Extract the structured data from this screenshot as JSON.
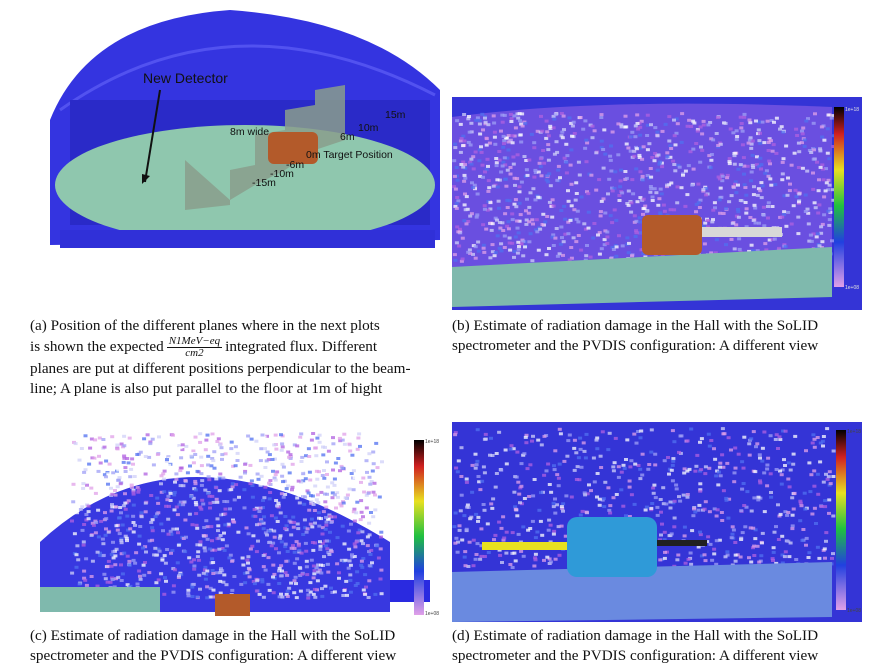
{
  "panels": {
    "a": {
      "labels": {
        "new_detector": "New Detector",
        "width": "8m wide",
        "d15_top": "15m",
        "d10_top": "10m",
        "d6_top": "6m",
        "target": "0m Target Position",
        "d6_bot": "-6m",
        "d10_bot": "-10m",
        "d15_bot": "-15m"
      }
    },
    "b": {
      "scale_top": "1e+18",
      "scale_bottom": "1e+08"
    },
    "c": {
      "scale_top": "1e+18",
      "scale_bottom": "1e+08"
    },
    "d": {
      "scale_top": "1e+18",
      "scale_bottom": "1e+08"
    }
  },
  "captions": {
    "a": {
      "line1": "(a) Position of the different planes where in the next plots",
      "line2_pre": "is shown the expected",
      "frac_num": "N1MeV−eq",
      "frac_den": "cm2",
      "line2_post": "integrated flux.  Different",
      "line3": "planes are put at different positions perpendicular to the beam-",
      "line4": "line; A plane is also put parallel to the floor at 1m of hight"
    },
    "b": {
      "line1": "(b) Estimate of radiation damage in the Hall with the SoLID",
      "line2": "spectrometer and the PVDIS configuration: A different view"
    },
    "c": {
      "line1": "(c) Estimate of radiation damage in the Hall with the SoLID",
      "line2": "spectrometer and the PVDIS configuration: A different view"
    },
    "d": {
      "line1": "(d) Estimate of radiation damage in the Hall with the SoLID",
      "line2": "spectrometer and the PVDIS configuration: A different view"
    }
  }
}
